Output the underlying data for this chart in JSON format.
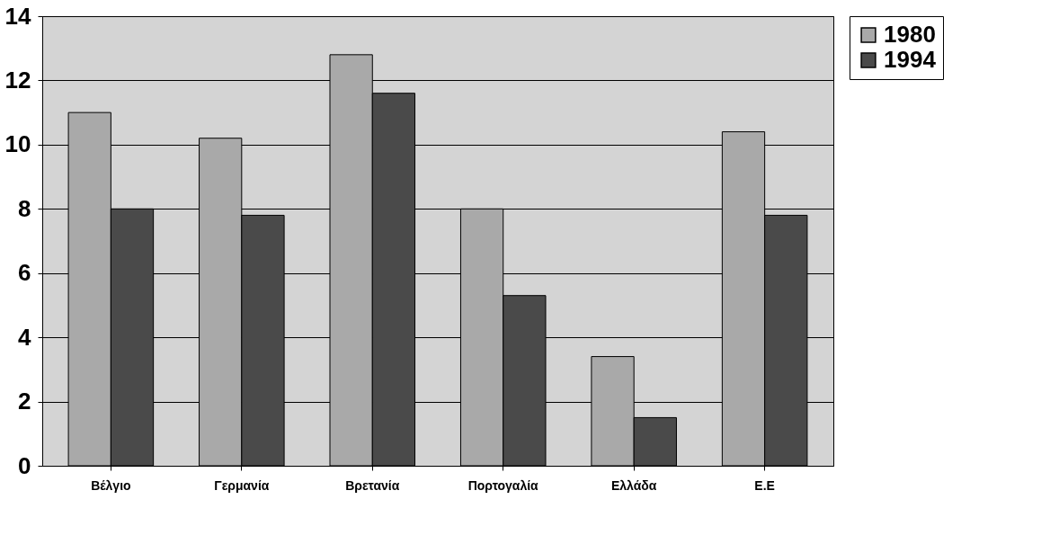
{
  "chart_data": {
    "type": "bar",
    "categories": [
      "Βέλγιο",
      "Γερμανία",
      "Βρετανία",
      "Πορτογαλία",
      "Ελλάδα",
      "Ε.Ε"
    ],
    "series": [
      {
        "name": "1980",
        "color": "#a9a9a9",
        "values": [
          11,
          10.2,
          12.8,
          8,
          3.4,
          10.4
        ]
      },
      {
        "name": "1994",
        "color": "#4a4a4a",
        "values": [
          8,
          7.8,
          11.6,
          5.3,
          1.5,
          7.8
        ]
      }
    ],
    "ylim": [
      0,
      14
    ],
    "yticks": [
      0,
      2,
      4,
      6,
      8,
      10,
      12,
      14
    ],
    "grid": "y",
    "legend": "right"
  }
}
